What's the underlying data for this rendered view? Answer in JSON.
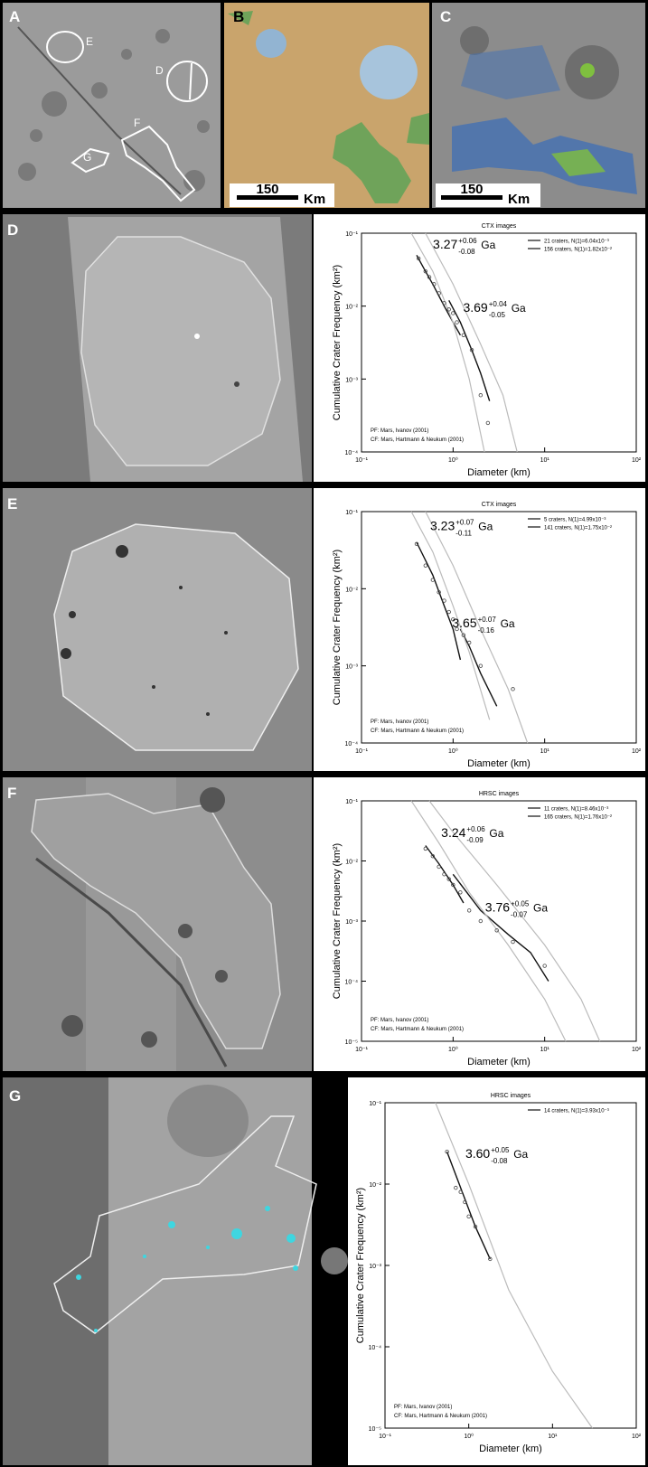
{
  "figure": {
    "panels": [
      {
        "label": "A"
      },
      {
        "label": "B"
      },
      {
        "label": "C"
      },
      {
        "label": "D"
      },
      {
        "label": "E"
      },
      {
        "label": "F"
      },
      {
        "label": "G"
      }
    ],
    "map_labels": [
      "E",
      "D",
      "F",
      "G"
    ],
    "scale_bars": [
      {
        "length": "150",
        "unit": "Km"
      },
      {
        "length": "150",
        "unit": "Km"
      }
    ]
  },
  "chart_data": [
    {
      "type": "line",
      "title": "CTX images",
      "xlabel": "Diameter (km)",
      "ylabel": "Cumulative Crater Frequency (km²)",
      "xscale": "log",
      "yscale": "log",
      "legend": "upper right",
      "xlim": [
        0.1,
        100
      ],
      "ylim": [
        0.0001,
        0.1
      ],
      "xticks": [
        {
          "value": 0.1,
          "label": "10⁻¹"
        },
        {
          "value": 1,
          "label": "10⁰"
        },
        {
          "value": 10,
          "label": "10¹"
        },
        {
          "value": 100,
          "label": "10²"
        }
      ],
      "yticks": [
        {
          "value": 0.0001,
          "label": "10⁻⁴"
        },
        {
          "value": 0.001,
          "label": "10⁻³"
        },
        {
          "value": 0.01,
          "label": "10⁻²"
        },
        {
          "value": 0.1,
          "label": "10⁻¹"
        }
      ],
      "notes": [
        "PF: Mars, Ivanov (2001)",
        "CF: Mars, Hartmann & Neukum (2001)"
      ],
      "ages": [
        {
          "value": "3.27",
          "plus": "+0.06",
          "minus": "-0.08",
          "unit": "Ga"
        },
        {
          "value": "3.69",
          "plus": "+0.04",
          "minus": "-0.05",
          "unit": "Ga"
        }
      ],
      "series": [
        {
          "name": "21 craters, N(1)=6.04x10⁻³",
          "mode": "lines",
          "color": "#111111",
          "x": [
            0.9,
            1.2,
            1.6,
            2.0,
            2.5
          ],
          "values": [
            0.012,
            0.006,
            0.0025,
            0.0012,
            0.0005
          ]
        },
        {
          "name": "156 craters, N(1)=1.82x10⁻²",
          "mode": "lines",
          "color": "#111111",
          "x": [
            0.4,
            0.5,
            0.6,
            0.8,
            1.0,
            1.2
          ],
          "values": [
            0.05,
            0.03,
            0.02,
            0.01,
            0.006,
            0.004
          ]
        },
        {
          "mode": "lines",
          "color": "#bbbbbb",
          "x": [
            0.35,
            0.6,
            1,
            1.5,
            2.2
          ],
          "values": [
            0.1,
            0.03,
            0.006,
            0.001,
            0.0001
          ]
        },
        {
          "mode": "lines",
          "color": "#bbbbbb",
          "x": [
            0.5,
            1,
            2,
            3.5,
            5
          ],
          "values": [
            0.1,
            0.02,
            0.003,
            0.0006,
            0.0001
          ]
        },
        {
          "mode": "markers",
          "color": "#444444",
          "x": [
            0.42,
            0.5,
            0.55,
            0.62,
            0.7,
            0.8,
            0.9,
            1.0,
            1.1,
            1.3,
            1.6,
            2.0,
            2.4
          ],
          "values": [
            0.045,
            0.03,
            0.025,
            0.02,
            0.015,
            0.011,
            0.009,
            0.008,
            0.006,
            0.004,
            0.0025,
            0.0006,
            0.00025
          ]
        }
      ]
    },
    {
      "type": "line",
      "title": "CTX images",
      "xlabel": "Diameter (km)",
      "ylabel": "Cumulative Crater Frequency (km²)",
      "xscale": "log",
      "yscale": "log",
      "legend": "upper right",
      "xlim": [
        0.1,
        100
      ],
      "ylim": [
        0.0001,
        0.1
      ],
      "xticks": [
        {
          "value": 0.1,
          "label": "10⁻¹"
        },
        {
          "value": 1,
          "label": "10⁰"
        },
        {
          "value": 10,
          "label": "10¹"
        },
        {
          "value": 100,
          "label": "10²"
        }
      ],
      "yticks": [
        {
          "value": 0.0001,
          "label": "10⁻⁴"
        },
        {
          "value": 0.001,
          "label": "10⁻³"
        },
        {
          "value": 0.01,
          "label": "10⁻²"
        },
        {
          "value": 0.1,
          "label": "10⁻¹"
        }
      ],
      "notes": [
        "PF: Mars, Ivanov (2001)",
        "CF: Mars, Hartmann & Neukum (2001)"
      ],
      "ages": [
        {
          "value": "3.23",
          "plus": "+0.07",
          "minus": "-0.11",
          "unit": "Ga"
        },
        {
          "value": "3.65",
          "plus": "+0.07",
          "minus": "-0.16",
          "unit": "Ga"
        }
      ],
      "series": [
        {
          "name": "5 craters, N(1)=4.99x10⁻³",
          "mode": "lines",
          "color": "#111111",
          "x": [
            1.2,
            1.5,
            2,
            3
          ],
          "values": [
            0.003,
            0.0018,
            0.0008,
            0.0003
          ]
        },
        {
          "name": "141 craters, N(1)=1.75x10⁻²",
          "mode": "lines",
          "color": "#111111",
          "x": [
            0.4,
            0.6,
            0.8,
            1.0,
            1.2
          ],
          "values": [
            0.04,
            0.015,
            0.006,
            0.003,
            0.0012
          ]
        },
        {
          "mode": "lines",
          "color": "#bbbbbb",
          "x": [
            0.35,
            0.6,
            1,
            1.5,
            2.5
          ],
          "values": [
            0.1,
            0.03,
            0.006,
            0.0015,
            0.0002
          ]
        },
        {
          "mode": "lines",
          "color": "#bbbbbb",
          "x": [
            0.5,
            1,
            2,
            4,
            6.5
          ],
          "values": [
            0.1,
            0.02,
            0.003,
            0.0005,
            0.0001
          ]
        },
        {
          "mode": "markers",
          "color": "#444444",
          "x": [
            0.4,
            0.5,
            0.6,
            0.7,
            0.8,
            0.9,
            1.0,
            1.1,
            1.3,
            1.5,
            2.0,
            4.5
          ],
          "values": [
            0.038,
            0.02,
            0.013,
            0.009,
            0.007,
            0.005,
            0.004,
            0.003,
            0.0025,
            0.002,
            0.001,
            0.0005
          ]
        }
      ]
    },
    {
      "type": "line",
      "title": "HRSC images",
      "xlabel": "Diameter (km)",
      "ylabel": "Cumulative Crater Frequency (km²)",
      "xscale": "log",
      "yscale": "log",
      "legend": "upper right",
      "xlim": [
        0.1,
        100
      ],
      "ylim": [
        1e-05,
        0.1
      ],
      "xticks": [
        {
          "value": 0.1,
          "label": "10⁻¹"
        },
        {
          "value": 1,
          "label": "10⁰"
        },
        {
          "value": 10,
          "label": "10¹"
        },
        {
          "value": 100,
          "label": "10²"
        }
      ],
      "yticks": [
        {
          "value": 1e-05,
          "label": "10⁻⁵"
        },
        {
          "value": 0.0001,
          "label": "10⁻⁴"
        },
        {
          "value": 0.001,
          "label": "10⁻³"
        },
        {
          "value": 0.01,
          "label": "10⁻²"
        },
        {
          "value": 0.1,
          "label": "10⁻¹"
        }
      ],
      "notes": [
        "PF: Mars, Ivanov (2001)",
        "CF: Mars, Hartmann & Neukum (2001)"
      ],
      "ages": [
        {
          "value": "3.24",
          "plus": "+0.06",
          "minus": "-0.09",
          "unit": "Ga"
        },
        {
          "value": "3.76",
          "plus": "+0.05",
          "minus": "-0.07",
          "unit": "Ga"
        }
      ],
      "series": [
        {
          "name": "11 craters, N(1)=8.46x10⁻³",
          "mode": "lines",
          "color": "#111111",
          "x": [
            1,
            2,
            4,
            7,
            11
          ],
          "values": [
            0.006,
            0.0015,
            0.0006,
            0.0003,
            0.0001
          ]
        },
        {
          "name": "165 craters, N(1)=1.76x10⁻²",
          "mode": "lines",
          "color": "#111111",
          "x": [
            0.5,
            0.7,
            1,
            1.3
          ],
          "values": [
            0.018,
            0.009,
            0.004,
            0.002
          ]
        },
        {
          "mode": "lines",
          "color": "#bbbbbb",
          "x": [
            0.35,
            0.7,
            1.5,
            4,
            10,
            17
          ],
          "values": [
            0.1,
            0.02,
            0.003,
            0.0004,
            5e-05,
            1e-05
          ]
        },
        {
          "mode": "lines",
          "color": "#bbbbbb",
          "x": [
            0.55,
            1,
            3,
            10,
            25,
            40
          ],
          "values": [
            0.1,
            0.03,
            0.004,
            0.0004,
            5e-05,
            1e-05
          ]
        },
        {
          "mode": "markers",
          "color": "#444444",
          "x": [
            0.5,
            0.6,
            0.7,
            0.8,
            0.9,
            1.0,
            1.2,
            1.5,
            2,
            3,
            4.5,
            10
          ],
          "values": [
            0.016,
            0.012,
            0.008,
            0.006,
            0.005,
            0.004,
            0.003,
            0.0015,
            0.001,
            0.0007,
            0.00045,
            0.00018
          ]
        }
      ]
    },
    {
      "type": "line",
      "title": "HRSC images",
      "xlabel": "Diameter (km)",
      "ylabel": "Cumulative Crater Frequency (km²)",
      "xscale": "log",
      "yscale": "log",
      "legend": "upper right",
      "xlim": [
        0.1,
        100
      ],
      "ylim": [
        1e-05,
        0.1
      ],
      "xticks": [
        {
          "value": 0.1,
          "label": "10⁻¹"
        },
        {
          "value": 1,
          "label": "10⁰"
        },
        {
          "value": 10,
          "label": "10¹"
        },
        {
          "value": 100,
          "label": "10²"
        }
      ],
      "yticks": [
        {
          "value": 1e-05,
          "label": "10⁻⁵"
        },
        {
          "value": 0.0001,
          "label": "10⁻⁴"
        },
        {
          "value": 0.001,
          "label": "10⁻³"
        },
        {
          "value": 0.01,
          "label": "10⁻²"
        },
        {
          "value": 0.1,
          "label": "10⁻¹"
        }
      ],
      "notes": [
        "PF: Mars, Ivanov (2001)",
        "CF: Mars, Hartmann & Neukum (2001)"
      ],
      "ages": [
        {
          "value": "3.60",
          "plus": "+0.05",
          "minus": "-0.08",
          "unit": "Ga"
        }
      ],
      "series": [
        {
          "name": "14 craters, N(1)=3.93x10⁻³",
          "mode": "lines",
          "color": "#111111",
          "x": [
            0.55,
            0.8,
            1.2,
            1.8
          ],
          "values": [
            0.025,
            0.009,
            0.003,
            0.0012
          ]
        },
        {
          "mode": "lines",
          "color": "#bbbbbb",
          "x": [
            0.4,
            1,
            3,
            10,
            30
          ],
          "values": [
            0.1,
            0.01,
            0.0005,
            5e-05,
            1e-05
          ]
        },
        {
          "mode": "markers",
          "color": "#444444",
          "x": [
            0.55,
            0.7,
            0.8,
            0.9,
            1.0,
            1.2,
            1.8
          ],
          "values": [
            0.025,
            0.009,
            0.008,
            0.006,
            0.004,
            0.003,
            0.0012
          ]
        }
      ]
    }
  ]
}
